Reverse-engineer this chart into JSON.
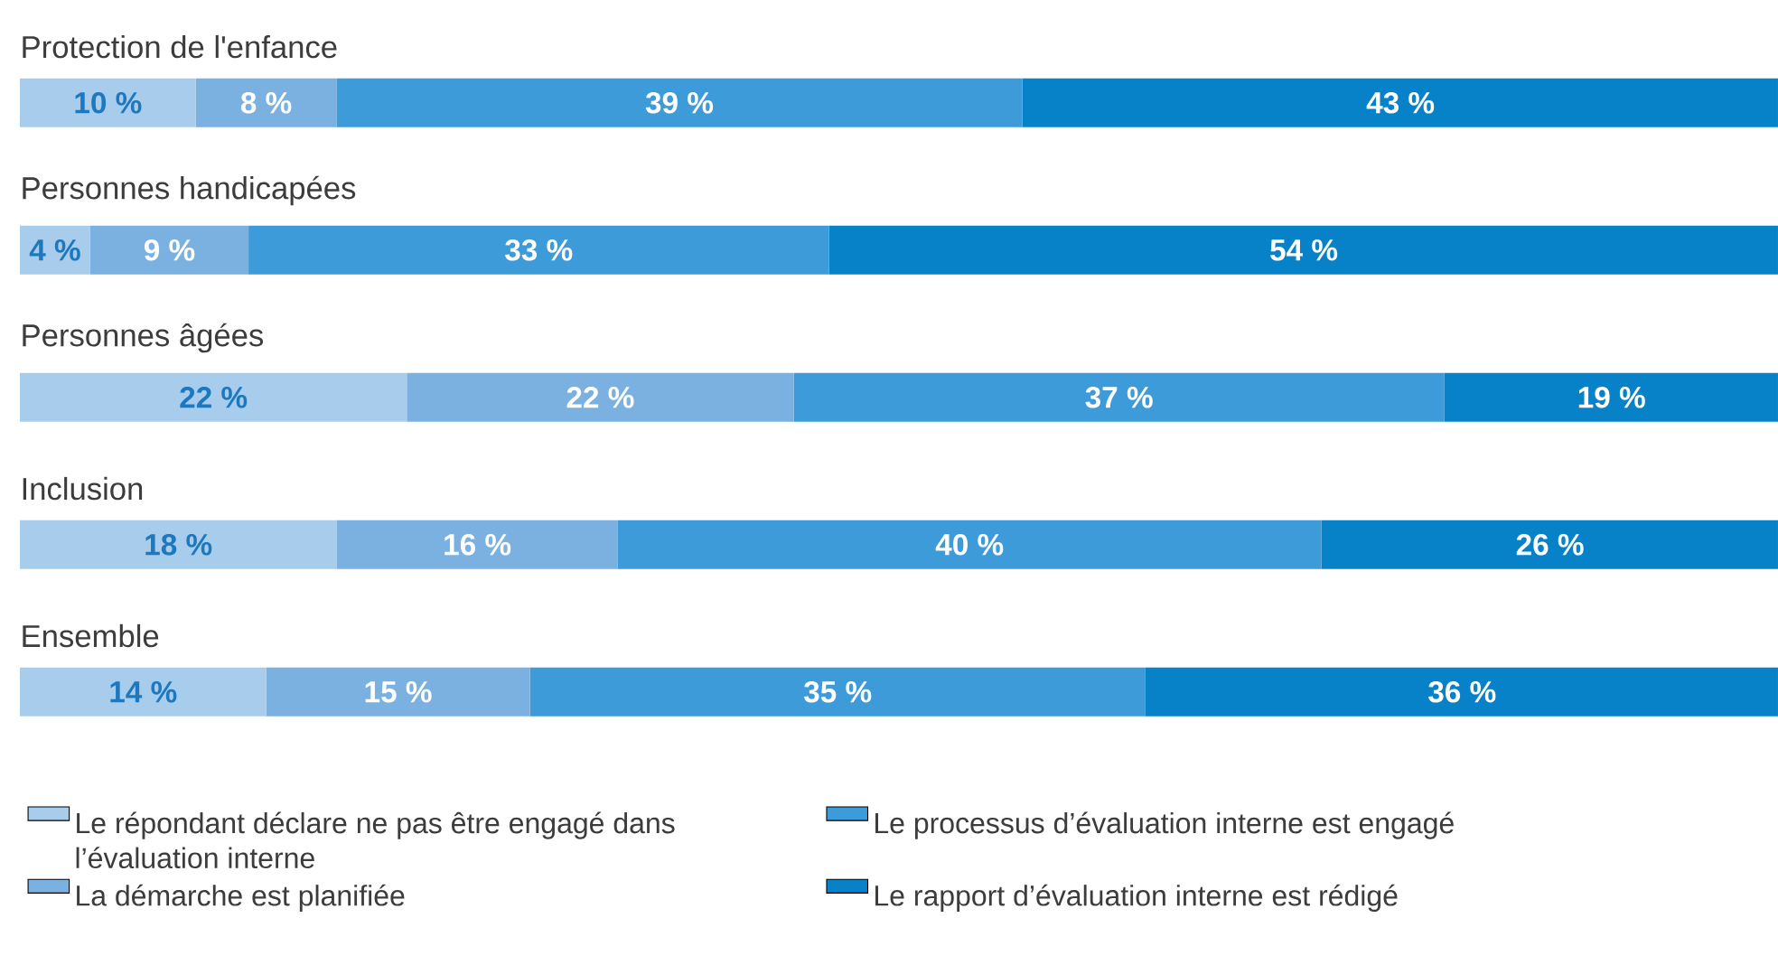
{
  "chart_data": {
    "type": "bar",
    "orientation": "horizontal",
    "stacked": true,
    "legend": "bottom",
    "categories": [
      "Protection de l'enfance",
      "Personnes handicapées",
      "Personnes âgées",
      "Inclusion",
      "Ensemble"
    ],
    "series": [
      {
        "name": "Le répondant déclare ne pas être engagé dans l’évaluation interne",
        "color": "#a8cdec",
        "values": [
          10,
          4,
          22,
          18,
          14
        ],
        "value_labels": [
          "10 %",
          "4 %",
          "22 %",
          "18 %",
          "14 %"
        ]
      },
      {
        "name": "La démarche est planifiée",
        "color": "#7ab1e0",
        "values": [
          8,
          9,
          22,
          16,
          15
        ],
        "value_labels": [
          "8 %",
          "9 %",
          "22 %",
          "16 %",
          "15 %"
        ]
      },
      {
        "name": "Le processus d’évaluation interne est engagé",
        "color": "#3d9bd9",
        "values": [
          39,
          33,
          37,
          40,
          35
        ],
        "value_labels": [
          "39 %",
          "33 %",
          "37 %",
          "40 %",
          "35 %"
        ]
      },
      {
        "name": "Le rapport d’évaluation interne est rédigé",
        "color": "#0782c9",
        "values": [
          43,
          54,
          19,
          26,
          36
        ],
        "value_labels": [
          "43 %",
          "54 %",
          "19 %",
          "26 %",
          "36 %"
        ]
      }
    ]
  }
}
